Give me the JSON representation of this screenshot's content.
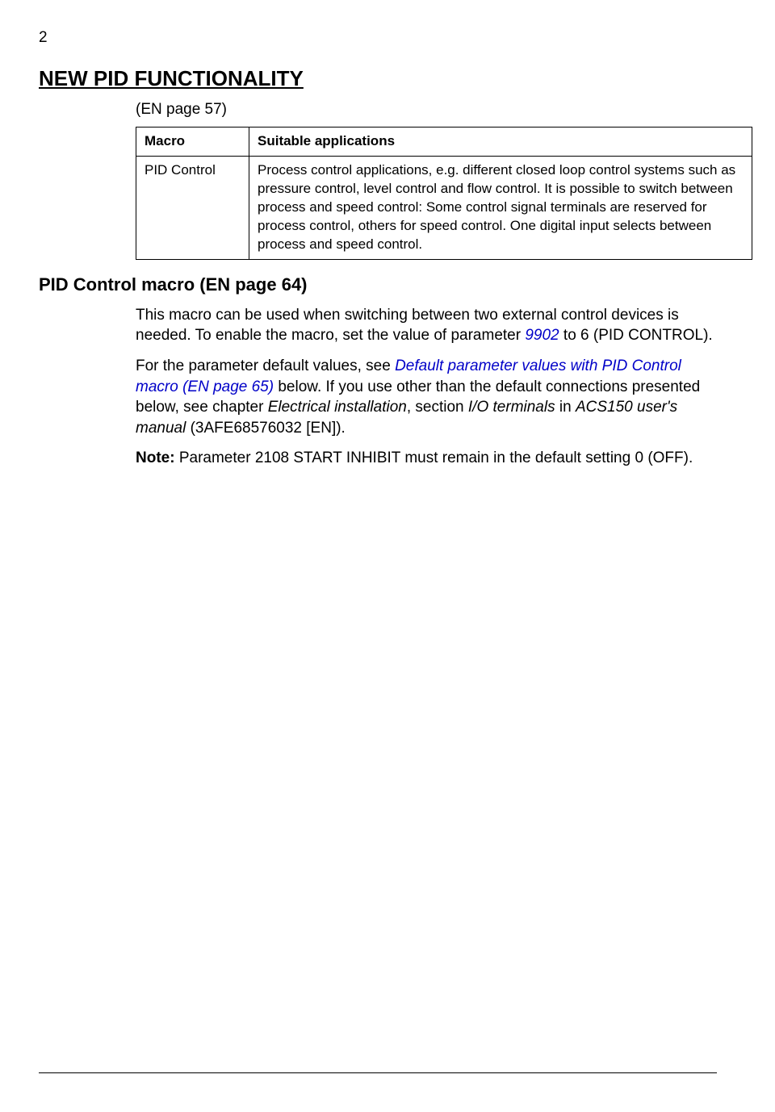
{
  "page_number": "2",
  "heading": "NEW PID FUNCTIONALITY",
  "heading_en_page": "(EN page 57)",
  "table": {
    "header_macro": "Macro",
    "header_apps": "Suitable applications",
    "row_macro": "PID Control",
    "row_apps": "Process control applications, e.g. different closed loop control systems such as pressure control, level control and flow control. It is possible to switch between process and speed control: Some control signal terminals are reserved for process control, others for speed control. One digital input selects between process and speed control."
  },
  "section_heading": "PID Control macro (EN page 64)",
  "p1_a": "This macro can be used when switching between two external control devices is needed. To enable the macro, set the value of parameter ",
  "p1_link": "9902",
  "p1_b": " to 6 (PID CONTROL).",
  "p2_a": "For the parameter default values, see ",
  "p2_link": "Default parameter values with PID Control macro (EN page 65)",
  "p2_b": " below. If you use other than the default connections presented below, see chapter ",
  "p2_i1": "Electrical installation",
  "p2_c": ", section ",
  "p2_i2": "I/O terminals",
  "p2_d": " in ",
  "p2_i3": "ACS150 user's manual",
  "p2_e": " (3AFE68576032 [EN]).",
  "p3_bold": "Note:",
  "p3_rest": " Parameter 2108 START INHIBIT must remain in the default setting 0 (OFF).",
  "colors": {
    "text": "#000000",
    "link": "#0000c8",
    "background": "#ffffff",
    "border": "#000000"
  },
  "typography": {
    "body_fontsize": 19,
    "h1_fontsize": 26,
    "h2_fontsize": 22,
    "table_fontsize": 17
  }
}
